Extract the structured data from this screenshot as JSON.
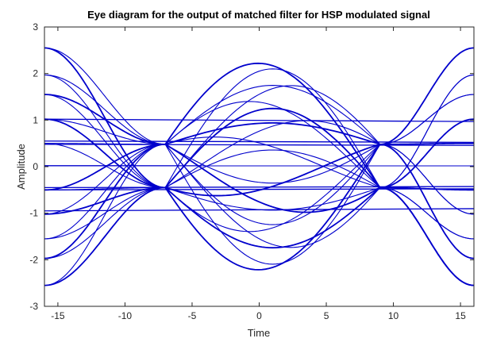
{
  "chart_data": {
    "type": "line",
    "title": "Eye diagram for the output of matched filter for HSP modulated signal",
    "xlabel": "Time",
    "ylabel": "Amplitude",
    "xlim": [
      -16,
      16
    ],
    "ylim": [
      -3,
      3
    ],
    "xticks": [
      -15,
      -10,
      -5,
      0,
      5,
      10,
      15
    ],
    "yticks": [
      -3,
      -2,
      -1,
      0,
      1,
      2,
      3
    ],
    "grid": false,
    "line_color": "#0000cc",
    "frame_color": "#262626",
    "trace_levels": [
      -2.55,
      -1.97,
      -1.55,
      -1.02,
      -0.5,
      0.5,
      1.02,
      1.55,
      1.97,
      2.55
    ],
    "crossing_points": [
      [
        -7,
        -0.45
      ],
      [
        -7,
        0.48
      ],
      [
        9,
        -0.45
      ],
      [
        9,
        0.48
      ]
    ]
  }
}
